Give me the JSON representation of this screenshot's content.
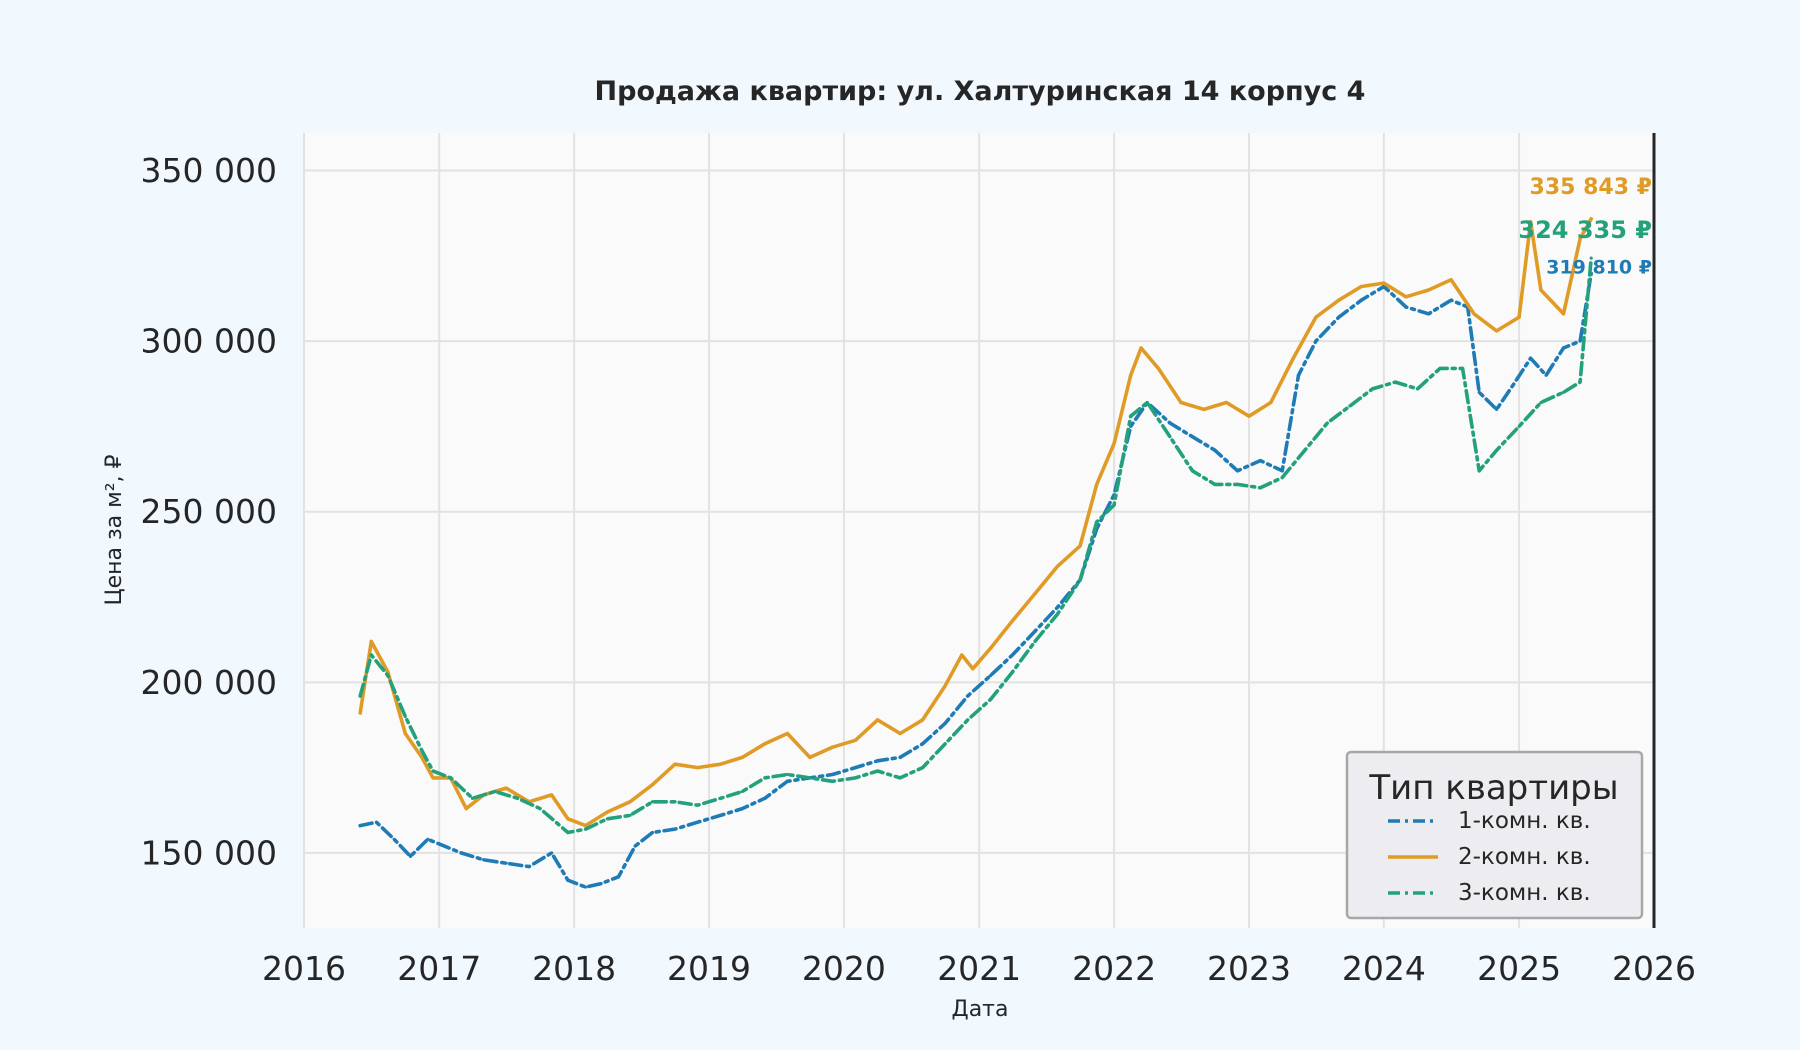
{
  "chart_data": {
    "type": "line",
    "title": "Продажа квартир: ул. Халтуринская 14 корпус 4",
    "xlabel": "Дата",
    "ylabel": "Цена за м², ₽",
    "xlim": [
      "2016-01-01",
      "2026-01-01"
    ],
    "ylim": [
      128000,
      361000
    ],
    "x_ticks": [
      "2016",
      "2017",
      "2018",
      "2019",
      "2020",
      "2021",
      "2022",
      "2023",
      "2024",
      "2025",
      "2026"
    ],
    "y_ticks": [
      150000,
      200000,
      250000,
      300000,
      350000
    ],
    "y_tick_labels": [
      "150 000",
      "200 000",
      "250 000",
      "300 000",
      "350 000"
    ],
    "grid": true,
    "legend": {
      "title": "Тип квартиры",
      "placement": "bottom-right"
    },
    "series": [
      {
        "name": "1-комн. кв.",
        "color": "#1f7bb6",
        "dash": "dashdot",
        "end_label": "319 810 ₽",
        "points": [
          [
            "2016-06-01",
            158000
          ],
          [
            "2016-07-15",
            159000
          ],
          [
            "2016-09-01",
            154000
          ],
          [
            "2016-10-15",
            149000
          ],
          [
            "2016-12-01",
            154000
          ],
          [
            "2017-01-15",
            152000
          ],
          [
            "2017-03-01",
            150000
          ],
          [
            "2017-05-01",
            148000
          ],
          [
            "2017-07-01",
            147000
          ],
          [
            "2017-09-01",
            146000
          ],
          [
            "2017-11-01",
            150000
          ],
          [
            "2017-12-15",
            142000
          ],
          [
            "2018-02-01",
            140000
          ],
          [
            "2018-03-15",
            141000
          ],
          [
            "2018-05-01",
            143000
          ],
          [
            "2018-06-15",
            152000
          ],
          [
            "2018-08-01",
            156000
          ],
          [
            "2018-10-01",
            157000
          ],
          [
            "2018-12-01",
            159000
          ],
          [
            "2019-02-01",
            161000
          ],
          [
            "2019-04-01",
            163000
          ],
          [
            "2019-06-01",
            166000
          ],
          [
            "2019-08-01",
            171000
          ],
          [
            "2019-10-01",
            172000
          ],
          [
            "2019-12-01",
            173000
          ],
          [
            "2020-02-01",
            175000
          ],
          [
            "2020-04-01",
            177000
          ],
          [
            "2020-06-01",
            178000
          ],
          [
            "2020-08-01",
            182000
          ],
          [
            "2020-10-01",
            188000
          ],
          [
            "2020-12-01",
            196000
          ],
          [
            "2021-02-01",
            202000
          ],
          [
            "2021-04-01",
            208000
          ],
          [
            "2021-06-01",
            215000
          ],
          [
            "2021-08-01",
            222000
          ],
          [
            "2021-10-01",
            230000
          ],
          [
            "2021-11-15",
            245000
          ],
          [
            "2022-01-01",
            255000
          ],
          [
            "2022-02-15",
            275000
          ],
          [
            "2022-04-01",
            282000
          ],
          [
            "2022-06-01",
            276000
          ],
          [
            "2022-08-01",
            272000
          ],
          [
            "2022-10-01",
            268000
          ],
          [
            "2022-12-01",
            262000
          ],
          [
            "2023-02-01",
            265000
          ],
          [
            "2023-04-01",
            262000
          ],
          [
            "2023-05-15",
            290000
          ],
          [
            "2023-07-01",
            300000
          ],
          [
            "2023-09-01",
            307000
          ],
          [
            "2023-11-01",
            312000
          ],
          [
            "2024-01-01",
            316000
          ],
          [
            "2024-03-01",
            310000
          ],
          [
            "2024-05-01",
            308000
          ],
          [
            "2024-07-01",
            312000
          ],
          [
            "2024-08-15",
            310000
          ],
          [
            "2024-09-15",
            285000
          ],
          [
            "2024-11-01",
            280000
          ],
          [
            "2024-12-15",
            287000
          ],
          [
            "2025-02-01",
            295000
          ],
          [
            "2025-03-15",
            290000
          ],
          [
            "2025-05-01",
            298000
          ],
          [
            "2025-06-15",
            300000
          ],
          [
            "2025-07-15",
            319810
          ]
        ]
      },
      {
        "name": "2-комн. кв.",
        "color": "#e09b26",
        "dash": "solid",
        "end_label": "335 843 ₽",
        "points": [
          [
            "2016-06-01",
            191000
          ],
          [
            "2016-07-01",
            212000
          ],
          [
            "2016-08-15",
            203000
          ],
          [
            "2016-10-01",
            185000
          ],
          [
            "2016-11-15",
            178000
          ],
          [
            "2016-12-15",
            172000
          ],
          [
            "2017-02-01",
            172000
          ],
          [
            "2017-03-15",
            163000
          ],
          [
            "2017-05-01",
            167000
          ],
          [
            "2017-07-01",
            169000
          ],
          [
            "2017-09-01",
            165000
          ],
          [
            "2017-11-01",
            167000
          ],
          [
            "2017-12-15",
            160000
          ],
          [
            "2018-02-01",
            158000
          ],
          [
            "2018-04-01",
            162000
          ],
          [
            "2018-06-01",
            165000
          ],
          [
            "2018-08-01",
            170000
          ],
          [
            "2018-10-01",
            176000
          ],
          [
            "2018-12-01",
            175000
          ],
          [
            "2019-02-01",
            176000
          ],
          [
            "2019-04-01",
            178000
          ],
          [
            "2019-06-01",
            182000
          ],
          [
            "2019-08-01",
            185000
          ],
          [
            "2019-10-01",
            178000
          ],
          [
            "2019-12-01",
            181000
          ],
          [
            "2020-02-01",
            183000
          ],
          [
            "2020-04-01",
            189000
          ],
          [
            "2020-06-01",
            185000
          ],
          [
            "2020-08-01",
            189000
          ],
          [
            "2020-10-01",
            199000
          ],
          [
            "2020-11-15",
            208000
          ],
          [
            "2020-12-15",
            204000
          ],
          [
            "2021-02-01",
            210000
          ],
          [
            "2021-04-01",
            218000
          ],
          [
            "2021-06-01",
            226000
          ],
          [
            "2021-08-01",
            234000
          ],
          [
            "2021-10-01",
            240000
          ],
          [
            "2021-11-15",
            258000
          ],
          [
            "2022-01-01",
            270000
          ],
          [
            "2022-02-15",
            290000
          ],
          [
            "2022-03-15",
            298000
          ],
          [
            "2022-05-01",
            292000
          ],
          [
            "2022-07-01",
            282000
          ],
          [
            "2022-09-01",
            280000
          ],
          [
            "2022-11-01",
            282000
          ],
          [
            "2023-01-01",
            278000
          ],
          [
            "2023-03-01",
            282000
          ],
          [
            "2023-05-01",
            295000
          ],
          [
            "2023-07-01",
            307000
          ],
          [
            "2023-09-01",
            312000
          ],
          [
            "2023-11-01",
            316000
          ],
          [
            "2024-01-01",
            317000
          ],
          [
            "2024-03-01",
            313000
          ],
          [
            "2024-05-01",
            315000
          ],
          [
            "2024-07-01",
            318000
          ],
          [
            "2024-09-01",
            308000
          ],
          [
            "2024-11-01",
            303000
          ],
          [
            "2025-01-01",
            307000
          ],
          [
            "2025-02-01",
            335000
          ],
          [
            "2025-03-01",
            315000
          ],
          [
            "2025-05-01",
            308000
          ],
          [
            "2025-06-15",
            330000
          ],
          [
            "2025-07-15",
            335843
          ]
        ]
      },
      {
        "name": "3-комн. кв.",
        "color": "#23a17c",
        "dash": "dashdot",
        "end_label": "324 335 ₽",
        "points": [
          [
            "2016-06-01",
            196000
          ],
          [
            "2016-07-01",
            208000
          ],
          [
            "2016-08-15",
            202000
          ],
          [
            "2016-10-01",
            190000
          ],
          [
            "2016-11-15",
            180000
          ],
          [
            "2016-12-15",
            174000
          ],
          [
            "2017-02-01",
            172000
          ],
          [
            "2017-04-01",
            166000
          ],
          [
            "2017-06-01",
            168000
          ],
          [
            "2017-08-01",
            166000
          ],
          [
            "2017-10-01",
            163000
          ],
          [
            "2017-12-15",
            156000
          ],
          [
            "2018-02-01",
            157000
          ],
          [
            "2018-04-01",
            160000
          ],
          [
            "2018-06-01",
            161000
          ],
          [
            "2018-08-01",
            165000
          ],
          [
            "2018-10-01",
            165000
          ],
          [
            "2018-12-01",
            164000
          ],
          [
            "2019-02-01",
            166000
          ],
          [
            "2019-04-01",
            168000
          ],
          [
            "2019-06-01",
            172000
          ],
          [
            "2019-08-01",
            173000
          ],
          [
            "2019-10-01",
            172000
          ],
          [
            "2019-12-01",
            171000
          ],
          [
            "2020-02-01",
            172000
          ],
          [
            "2020-04-01",
            174000
          ],
          [
            "2020-06-01",
            172000
          ],
          [
            "2020-08-01",
            175000
          ],
          [
            "2020-10-01",
            182000
          ],
          [
            "2020-12-01",
            189000
          ],
          [
            "2021-02-01",
            195000
          ],
          [
            "2021-04-01",
            203000
          ],
          [
            "2021-06-01",
            212000
          ],
          [
            "2021-08-01",
            220000
          ],
          [
            "2021-10-01",
            230000
          ],
          [
            "2021-11-15",
            247000
          ],
          [
            "2022-01-01",
            252000
          ],
          [
            "2022-02-15",
            278000
          ],
          [
            "2022-04-01",
            282000
          ],
          [
            "2022-06-01",
            272000
          ],
          [
            "2022-08-01",
            262000
          ],
          [
            "2022-10-01",
            258000
          ],
          [
            "2022-12-01",
            258000
          ],
          [
            "2023-02-01",
            257000
          ],
          [
            "2023-04-01",
            260000
          ],
          [
            "2023-06-01",
            268000
          ],
          [
            "2023-08-01",
            276000
          ],
          [
            "2023-10-01",
            281000
          ],
          [
            "2023-12-01",
            286000
          ],
          [
            "2024-02-01",
            288000
          ],
          [
            "2024-04-01",
            286000
          ],
          [
            "2024-06-01",
            292000
          ],
          [
            "2024-08-01",
            292000
          ],
          [
            "2024-09-15",
            262000
          ],
          [
            "2024-11-01",
            268000
          ],
          [
            "2025-01-01",
            275000
          ],
          [
            "2025-03-01",
            282000
          ],
          [
            "2025-05-01",
            285000
          ],
          [
            "2025-06-15",
            288000
          ],
          [
            "2025-07-15",
            324335
          ]
        ]
      }
    ]
  }
}
